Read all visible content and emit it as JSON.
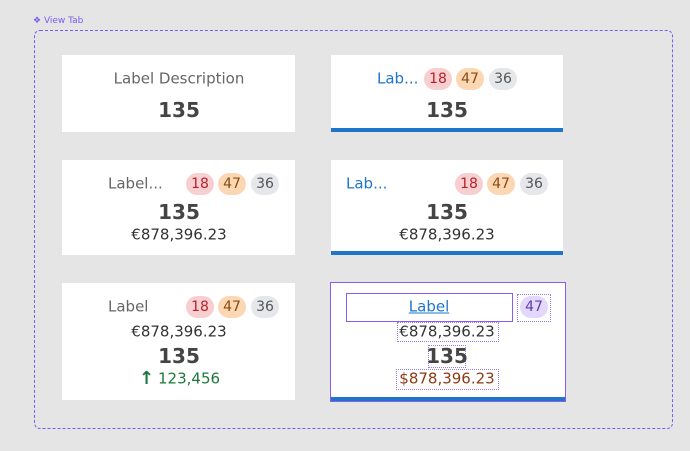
{
  "frame": {
    "label": "View Tab"
  },
  "cards": [
    {
      "label": "Label Description",
      "value": "135"
    },
    {
      "label": "Lab...",
      "badges": [
        "18",
        "47",
        "36"
      ],
      "value": "135"
    },
    {
      "label": "Label...",
      "badges": [
        "18",
        "47",
        "36"
      ],
      "value": "135",
      "amount": "€878,396.23"
    },
    {
      "label": "Lab...",
      "badges": [
        "18",
        "47",
        "36"
      ],
      "value": "135",
      "amount": "€878,396.23"
    },
    {
      "label": "Label",
      "badges": [
        "18",
        "47",
        "36"
      ],
      "amount": "€878,396.23",
      "value": "135",
      "trend": "123,456"
    },
    {
      "label": "Label",
      "badges": [
        "47"
      ],
      "amount": "€878,396.23",
      "value": "135",
      "secondary": "$878,396.23"
    }
  ]
}
